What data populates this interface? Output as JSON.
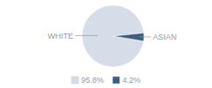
{
  "chart_data": {
    "type": "pie",
    "categories": [
      "WHITE",
      "ASIAN"
    ],
    "values": [
      95.8,
      4.2
    ],
    "value_labels": [
      "95.8%",
      "4.2%"
    ],
    "colors": [
      "#d5dde8",
      "#3a5f7d"
    ],
    "legend": "bottom"
  }
}
